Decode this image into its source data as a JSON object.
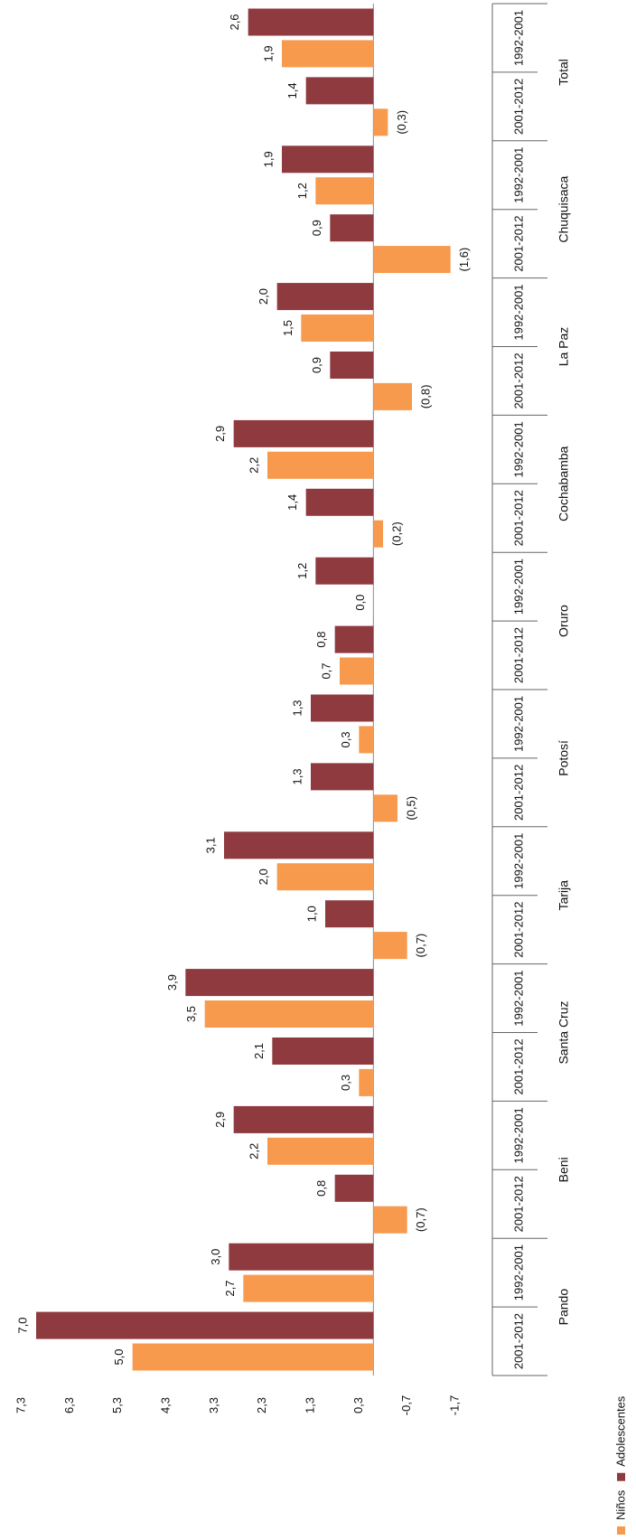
{
  "chart_data": {
    "type": "bar",
    "orientation": "rotated-90",
    "value_axis": {
      "min": -1.7,
      "max": 7.3,
      "ticks": [
        "7,3",
        "6,3",
        "5,3",
        "4,3",
        "3,3",
        "2,3",
        "1,3",
        "0,3",
        "-0,7",
        "-1,7"
      ],
      "tick_values": [
        7.3,
        6.3,
        5.3,
        4.3,
        3.3,
        2.3,
        1.3,
        0.3,
        -0.7,
        -1.7
      ]
    },
    "groups": [
      "Total",
      "Chuquisaca",
      "La Paz",
      "Cochabamba",
      "Oruro",
      "Potosí",
      "Tarija",
      "Santa Cruz",
      "Beni",
      "Pando"
    ],
    "periods": [
      "1992-2001",
      "2001-2012"
    ],
    "series": [
      {
        "name": "Niños",
        "color": "#F79A4E",
        "values": [
          1.9,
          -0.3,
          1.2,
          -1.6,
          1.5,
          -0.8,
          2.2,
          -0.2,
          0.0,
          0.7,
          0.3,
          -0.5,
          2.0,
          -0.7,
          3.5,
          0.3,
          2.2,
          -0.7,
          2.7,
          5.0
        ],
        "labels": [
          "1,9",
          "(0,3)",
          "1,2",
          "(1,6)",
          "1,5",
          "(0,8)",
          "2,2",
          "(0,2)",
          "0,0",
          "0,7",
          "0,3",
          "(0,5)",
          "2,0",
          "(0,7)",
          "3,5",
          "0,3",
          "2,2",
          "(0,7)",
          "2,7",
          "5,0"
        ]
      },
      {
        "name": "Adolescentes",
        "color": "#8E3A3F",
        "values": [
          2.6,
          1.4,
          1.9,
          0.9,
          2.0,
          0.9,
          2.9,
          1.4,
          1.2,
          0.8,
          1.3,
          1.3,
          3.1,
          1.0,
          3.9,
          2.1,
          2.9,
          0.8,
          3.0,
          7.0
        ],
        "labels": [
          "2,6",
          "1,4",
          "1,9",
          "0,9",
          "2,0",
          "0,9",
          "2,9",
          "1,4",
          "1,2",
          "0,8",
          "1,3",
          "1,3",
          "3,1",
          "1,0",
          "3,9",
          "2,1",
          "2,9",
          "0,8",
          "3,0",
          "7,0"
        ]
      }
    ],
    "legend": {
      "items": [
        "Niños",
        "Adolescentes"
      ],
      "position": "bottom"
    },
    "grid": false
  }
}
